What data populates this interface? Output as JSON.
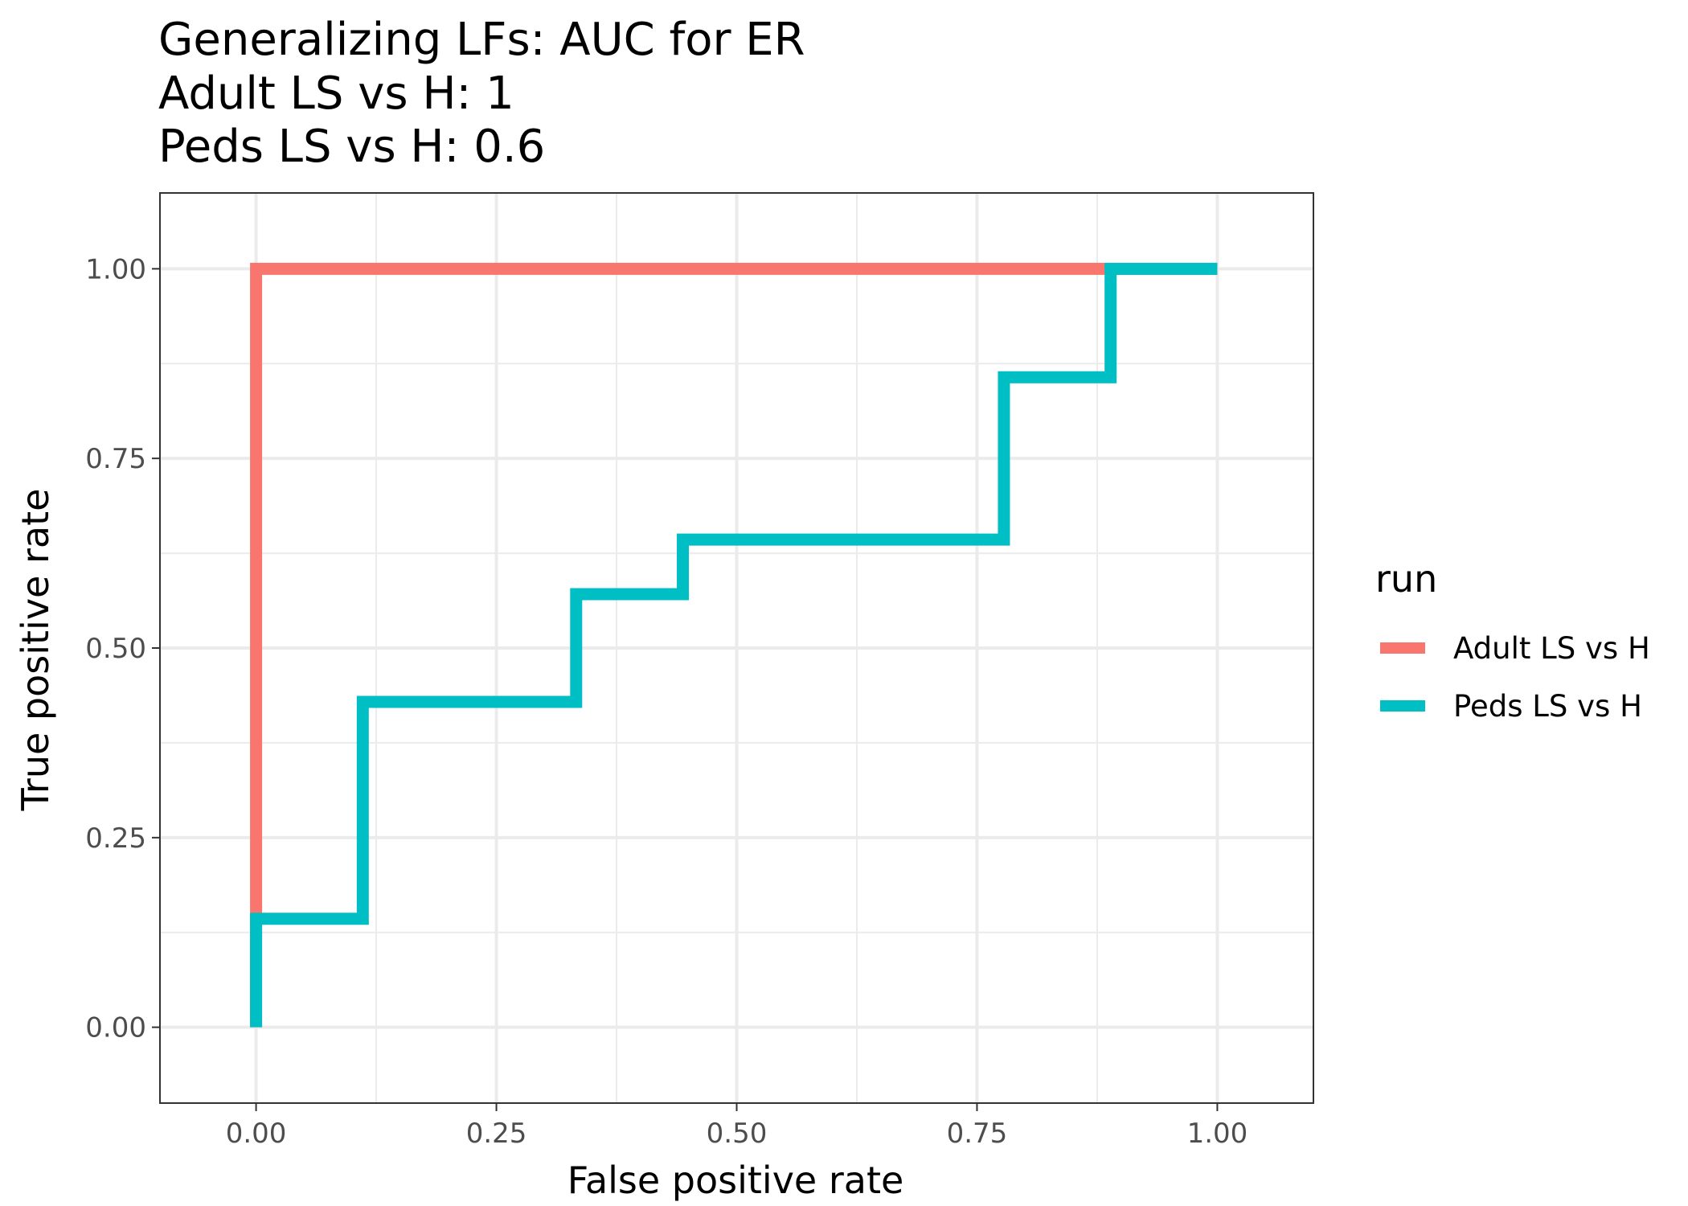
{
  "chart_data": {
    "type": "line",
    "title_lines": [
      "Generalizing LFs: AUC for ER",
      "Adult LS vs H: 1",
      "Peds LS vs H: 0.6"
    ],
    "xlabel": "False positive rate",
    "ylabel": "True positive rate",
    "xlim": [
      -0.1,
      1.1
    ],
    "ylim": [
      -0.1,
      1.1
    ],
    "x_ticks": [
      0,
      0.25,
      0.5,
      0.75,
      1
    ],
    "x_tick_labels": [
      "0.00",
      "0.25",
      "0.50",
      "0.75",
      "1.00"
    ],
    "y_ticks": [
      0,
      0.25,
      0.5,
      0.75,
      1
    ],
    "y_tick_labels": [
      "0.00",
      "0.25",
      "0.50",
      "0.75",
      "1.00"
    ],
    "grid": true,
    "legend": {
      "title": "run",
      "position": "right"
    },
    "series": [
      {
        "name": "Adult LS vs H",
        "color": "#F8766D",
        "x": [
          0,
          0,
          0,
          0.889,
          1
        ],
        "y": [
          0,
          0.143,
          1,
          1,
          1
        ]
      },
      {
        "name": "Peds LS vs H",
        "color": "#00BFC4",
        "x": [
          0,
          0,
          0.111,
          0.111,
          0.333,
          0.333,
          0.444,
          0.444,
          0.778,
          0.778,
          0.889,
          0.889,
          1
        ],
        "y": [
          0,
          0.143,
          0.143,
          0.429,
          0.429,
          0.571,
          0.571,
          0.643,
          0.643,
          0.857,
          0.857,
          1,
          1
        ]
      }
    ]
  }
}
